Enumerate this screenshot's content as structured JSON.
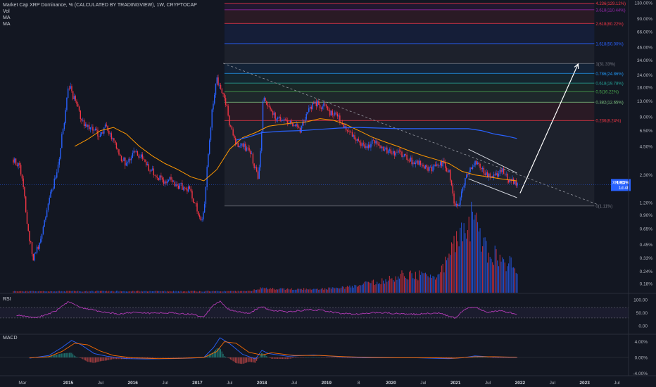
{
  "legend": {
    "title": "Market Cap XRP Dominance, % (CALCULATED BY TRADINGVIEW), 1W, CRYPTOCAP",
    "vol": "Vol",
    "ma1": "MA",
    "ma2": "MA"
  },
  "panes": {
    "rsi": "RSI",
    "macd": "MACD"
  },
  "price_badge": {
    "symbol": "XRP.D",
    "value": "1.83%",
    "countdown": "1d 4h"
  },
  "colors": {
    "background": "#131722",
    "up": "#2962ff",
    "down": "#f23645",
    "ma_fast": "#ff9800",
    "ma_slow": "#2962ff",
    "rsi": "#b23bb5",
    "fib_top": "#f23645",
    "fib_blue": "#2962ff"
  },
  "chart_data": [
    {
      "type": "candlestick",
      "title": "Market Cap XRP Dominance, % (CALCULATED BY TRADINGVIEW), 1W, CRYPTOCAP",
      "scale": "log",
      "y_ticks": [
        "130.00%",
        "90.00%",
        "66.00%",
        "46.00%",
        "34.00%",
        "24.00%",
        "18.00%",
        "13.00%",
        "9.00%",
        "6.50%",
        "4.50%",
        "2.30%",
        "1.20%",
        "0.90%",
        "0.65%",
        "0.45%",
        "0.33%",
        "0.24%",
        "0.18%"
      ],
      "y_tick_values": [
        130,
        90,
        66,
        46,
        34,
        24,
        18,
        13,
        9,
        6.5,
        4.5,
        2.3,
        1.2,
        0.9,
        0.65,
        0.45,
        0.33,
        0.24,
        0.18
      ],
      "x_ticks": [
        "Mar",
        "2015",
        "Jul",
        "2016",
        "Jul",
        "2017",
        "Jul",
        "2018",
        "Jul",
        "2019",
        "8",
        "2020",
        "Jul",
        "2021",
        "Jul",
        "2022",
        "Jul",
        "2023",
        "Jul"
      ],
      "x_tick_dates": [
        2014.17,
        2015.0,
        2015.5,
        2016.0,
        2016.5,
        2017.0,
        2017.5,
        2018.0,
        2018.5,
        2019.0,
        2019.5,
        2020.0,
        2020.5,
        2021.0,
        2021.5,
        2022.0,
        2022.5,
        2023.0,
        2023.5
      ],
      "grid": false,
      "price_path": [
        [
          2014.15,
          3.3
        ],
        [
          2014.25,
          2.8
        ],
        [
          2014.35,
          0.75
        ],
        [
          2014.45,
          0.3
        ],
        [
          2014.55,
          0.45
        ],
        [
          2014.65,
          0.85
        ],
        [
          2014.75,
          1.6
        ],
        [
          2014.85,
          3.0
        ],
        [
          2014.95,
          8.0
        ],
        [
          2015.0,
          20.0
        ],
        [
          2015.08,
          14.0
        ],
        [
          2015.18,
          9.5
        ],
        [
          2015.28,
          7.0
        ],
        [
          2015.38,
          6.5
        ],
        [
          2015.5,
          6.0
        ],
        [
          2015.6,
          7.2
        ],
        [
          2015.7,
          5.0
        ],
        [
          2015.8,
          3.5
        ],
        [
          2015.9,
          3.0
        ],
        [
          2016.0,
          3.8
        ],
        [
          2016.1,
          3.6
        ],
        [
          2016.2,
          3.0
        ],
        [
          2016.3,
          2.5
        ],
        [
          2016.4,
          2.2
        ],
        [
          2016.5,
          2.0
        ],
        [
          2016.6,
          2.1
        ],
        [
          2016.7,
          1.7
        ],
        [
          2016.8,
          1.8
        ],
        [
          2016.9,
          1.5
        ],
        [
          2017.0,
          0.98
        ],
        [
          2017.06,
          0.78
        ],
        [
          2017.12,
          1.2
        ],
        [
          2017.2,
          5.5
        ],
        [
          2017.3,
          22.0
        ],
        [
          2017.36,
          18.0
        ],
        [
          2017.42,
          14.0
        ],
        [
          2017.5,
          7.0
        ],
        [
          2017.6,
          5.0
        ],
        [
          2017.7,
          4.5
        ],
        [
          2017.8,
          4.2
        ],
        [
          2017.9,
          2.6
        ],
        [
          2017.95,
          2.0
        ],
        [
          2018.0,
          6.5
        ],
        [
          2018.02,
          15.0
        ],
        [
          2018.1,
          11.0
        ],
        [
          2018.2,
          9.0
        ],
        [
          2018.3,
          8.0
        ],
        [
          2018.4,
          7.8
        ],
        [
          2018.5,
          7.2
        ],
        [
          2018.6,
          6.5
        ],
        [
          2018.7,
          9.5
        ],
        [
          2018.75,
          11.0
        ],
        [
          2018.85,
          12.5
        ],
        [
          2018.95,
          11.5
        ],
        [
          2019.1,
          9.5
        ],
        [
          2019.2,
          8.5
        ],
        [
          2019.3,
          6.8
        ],
        [
          2019.4,
          5.5
        ],
        [
          2019.5,
          4.8
        ],
        [
          2019.6,
          4.3
        ],
        [
          2019.7,
          5.0
        ],
        [
          2019.8,
          4.6
        ],
        [
          2019.9,
          4.2
        ],
        [
          2020.0,
          4.0
        ],
        [
          2020.1,
          3.9
        ],
        [
          2020.2,
          3.8
        ],
        [
          2020.3,
          3.3
        ],
        [
          2020.4,
          3.0
        ],
        [
          2020.5,
          2.9
        ],
        [
          2020.6,
          2.7
        ],
        [
          2020.7,
          2.8
        ],
        [
          2020.8,
          3.1
        ],
        [
          2020.9,
          2.5
        ],
        [
          2020.97,
          1.3
        ],
        [
          2021.0,
          1.2
        ],
        [
          2021.05,
          1.2
        ],
        [
          2021.12,
          1.7
        ],
        [
          2021.2,
          2.4
        ],
        [
          2021.3,
          3.3
        ],
        [
          2021.4,
          2.6
        ],
        [
          2021.5,
          2.3
        ],
        [
          2021.6,
          2.2
        ],
        [
          2021.7,
          2.6
        ],
        [
          2021.8,
          2.1
        ],
        [
          2021.9,
          1.9
        ],
        [
          2021.95,
          1.83
        ]
      ],
      "ma_fast_path": [
        [
          2015.1,
          4.5
        ],
        [
          2015.3,
          5.3
        ],
        [
          2015.5,
          6.5
        ],
        [
          2015.7,
          7.0
        ],
        [
          2015.9,
          6.0
        ],
        [
          2016.1,
          4.5
        ],
        [
          2016.3,
          3.6
        ],
        [
          2016.5,
          3.0
        ],
        [
          2016.7,
          2.6
        ],
        [
          2016.9,
          2.2
        ],
        [
          2017.1,
          2.0
        ],
        [
          2017.3,
          2.6
        ],
        [
          2017.5,
          4.2
        ],
        [
          2017.7,
          5.5
        ],
        [
          2017.9,
          6.2
        ],
        [
          2018.1,
          7.2
        ],
        [
          2018.3,
          7.5
        ],
        [
          2018.5,
          7.8
        ],
        [
          2018.7,
          8.0
        ],
        [
          2018.9,
          8.6
        ],
        [
          2019.1,
          8.3
        ],
        [
          2019.3,
          7.5
        ],
        [
          2019.5,
          6.5
        ],
        [
          2019.7,
          5.6
        ],
        [
          2019.9,
          5.0
        ],
        [
          2020.1,
          4.5
        ],
        [
          2020.3,
          4.0
        ],
        [
          2020.5,
          3.6
        ],
        [
          2020.7,
          3.3
        ],
        [
          2020.9,
          3.0
        ],
        [
          2021.1,
          2.5
        ],
        [
          2021.3,
          2.3
        ],
        [
          2021.5,
          2.2
        ],
        [
          2021.7,
          2.1
        ],
        [
          2021.95,
          2.0
        ]
      ],
      "ma_slow_path": [
        [
          2017.6,
          5.2
        ],
        [
          2017.8,
          5.6
        ],
        [
          2018.0,
          6.2
        ],
        [
          2018.3,
          6.4
        ],
        [
          2018.6,
          6.5
        ],
        [
          2018.9,
          6.7
        ],
        [
          2019.2,
          6.9
        ],
        [
          2019.5,
          7.0
        ],
        [
          2019.8,
          6.9
        ],
        [
          2020.1,
          6.8
        ],
        [
          2020.4,
          6.8
        ],
        [
          2020.7,
          6.8
        ],
        [
          2021.0,
          6.8
        ],
        [
          2021.2,
          6.8
        ],
        [
          2021.4,
          6.5
        ],
        [
          2021.6,
          6.0
        ],
        [
          2021.8,
          5.7
        ],
        [
          2021.95,
          5.4
        ]
      ],
      "volume": {
        "y_ticks": [],
        "path": [
          [
            2017.8,
            0.02
          ],
          [
            2018.0,
            0.06
          ],
          [
            2018.3,
            0.05
          ],
          [
            2018.6,
            0.05
          ],
          [
            2018.9,
            0.05
          ],
          [
            2019.3,
            0.07
          ],
          [
            2019.6,
            0.12
          ],
          [
            2019.9,
            0.16
          ],
          [
            2020.1,
            0.22
          ],
          [
            2020.3,
            0.26
          ],
          [
            2020.5,
            0.22
          ],
          [
            2020.7,
            0.2
          ],
          [
            2020.9,
            0.45
          ],
          [
            2021.0,
            0.65
          ],
          [
            2021.1,
            0.8
          ],
          [
            2021.2,
            0.95
          ],
          [
            2021.3,
            1.0
          ],
          [
            2021.4,
            0.75
          ],
          [
            2021.5,
            0.55
          ],
          [
            2021.6,
            0.5
          ],
          [
            2021.7,
            0.45
          ],
          [
            2021.8,
            0.4
          ],
          [
            2021.95,
            0.35
          ]
        ]
      },
      "fib_levels": [
        {
          "label": "4.236(129.12%)",
          "value": 129.12,
          "color": "#f23645"
        },
        {
          "label": "3.618(110.44%)",
          "value": 110.44,
          "color": "#9c27b0"
        },
        {
          "label": "2.618(80.22%)",
          "value": 80.22,
          "color": "#f23645"
        },
        {
          "label": "1.618(50.00%)",
          "value": 50.0,
          "color": "#2962ff"
        },
        {
          "label": "1(31.33%)",
          "value": 31.33,
          "color": "#787b86"
        },
        {
          "label": "0.786(24.86%)",
          "value": 24.86,
          "color": "#2196f3"
        },
        {
          "label": "0.618(19.78%)",
          "value": 19.78,
          "color": "#26a69a"
        },
        {
          "label": "0.5(16.22%)",
          "value": 16.22,
          "color": "#4caf50"
        },
        {
          "label": "0.382(12.65%)",
          "value": 12.65,
          "color": "#81c784"
        },
        {
          "label": "0.236(8.24%)",
          "value": 8.24,
          "color": "#f23645"
        },
        {
          "label": "0(1.11%)",
          "value": 1.11,
          "color": "#787b86"
        }
      ],
      "fib_range": [
        2017.42,
        2023.15
      ],
      "annotations": [
        {
          "type": "dashed-trendline",
          "from": [
            2017.4,
            31.5
          ],
          "to": [
            2023.2,
            1.15
          ]
        },
        {
          "type": "channel-upper",
          "from": [
            2021.2,
            4.2
          ],
          "to": [
            2021.95,
            2.4
          ]
        },
        {
          "type": "channel-lower",
          "from": [
            2021.2,
            2.1
          ],
          "to": [
            2021.95,
            1.35
          ]
        },
        {
          "type": "arrow",
          "from": [
            2022.0,
            1.5
          ],
          "to": [
            2022.9,
            31.0
          ]
        }
      ]
    },
    {
      "type": "line",
      "title": "RSI",
      "y_ticks": [
        "100.00",
        "50.00",
        "0.00"
      ],
      "y_tick_values": [
        100,
        50,
        0
      ],
      "path": [
        [
          2014.2,
          40
        ],
        [
          2014.5,
          30
        ],
        [
          2014.8,
          55
        ],
        [
          2015.0,
          92
        ],
        [
          2015.2,
          70
        ],
        [
          2015.5,
          55
        ],
        [
          2015.8,
          45
        ],
        [
          2016.0,
          52
        ],
        [
          2016.3,
          48
        ],
        [
          2016.6,
          50
        ],
        [
          2016.9,
          44
        ],
        [
          2017.1,
          35
        ],
        [
          2017.25,
          80
        ],
        [
          2017.35,
          95
        ],
        [
          2017.5,
          60
        ],
        [
          2017.8,
          48
        ],
        [
          2018.0,
          75
        ],
        [
          2018.1,
          62
        ],
        [
          2018.4,
          52
        ],
        [
          2018.7,
          62
        ],
        [
          2018.9,
          60
        ],
        [
          2019.2,
          48
        ],
        [
          2019.5,
          44
        ],
        [
          2019.8,
          52
        ],
        [
          2020.1,
          46
        ],
        [
          2020.4,
          44
        ],
        [
          2020.7,
          50
        ],
        [
          2020.9,
          38
        ],
        [
          2021.0,
          30
        ],
        [
          2021.15,
          65
        ],
        [
          2021.3,
          72
        ],
        [
          2021.5,
          52
        ],
        [
          2021.7,
          58
        ],
        [
          2021.95,
          44
        ]
      ]
    },
    {
      "type": "bar",
      "title": "MACD",
      "y_ticks": [
        "4.00%",
        "0.00%",
        "-4.00%"
      ],
      "y_tick_values": [
        4,
        0,
        -4
      ],
      "macd_path": [
        [
          2014.4,
          -0.2
        ],
        [
          2014.7,
          0.5
        ],
        [
          2014.9,
          2.5
        ],
        [
          2015.05,
          4.3
        ],
        [
          2015.2,
          3.2
        ],
        [
          2015.4,
          1.0
        ],
        [
          2015.6,
          0.3
        ],
        [
          2015.9,
          -0.3
        ],
        [
          2016.2,
          -0.4
        ],
        [
          2016.6,
          -0.3
        ],
        [
          2016.9,
          -0.2
        ],
        [
          2017.1,
          0.0
        ],
        [
          2017.25,
          2.5
        ],
        [
          2017.35,
          5.0
        ],
        [
          2017.5,
          3.5
        ],
        [
          2017.7,
          0.8
        ],
        [
          2017.9,
          -0.4
        ],
        [
          2018.0,
          1.8
        ],
        [
          2018.1,
          1.0
        ],
        [
          2018.4,
          0.3
        ],
        [
          2018.8,
          0.6
        ],
        [
          2019.2,
          0.2
        ],
        [
          2019.6,
          -0.1
        ],
        [
          2020.0,
          -0.1
        ],
        [
          2020.4,
          -0.1
        ],
        [
          2020.9,
          -0.3
        ],
        [
          2021.1,
          -0.1
        ],
        [
          2021.3,
          0.4
        ],
        [
          2021.6,
          0.1
        ],
        [
          2021.95,
          0.0
        ]
      ],
      "signal_path": [
        [
          2014.4,
          -0.1
        ],
        [
          2014.7,
          0.2
        ],
        [
          2014.9,
          1.5
        ],
        [
          2015.1,
          3.6
        ],
        [
          2015.3,
          3.2
        ],
        [
          2015.5,
          1.6
        ],
        [
          2015.7,
          0.5
        ],
        [
          2016.0,
          -0.1
        ],
        [
          2016.4,
          -0.3
        ],
        [
          2016.8,
          -0.2
        ],
        [
          2017.1,
          0.0
        ],
        [
          2017.3,
          1.5
        ],
        [
          2017.42,
          4.0
        ],
        [
          2017.6,
          3.6
        ],
        [
          2017.8,
          1.3
        ],
        [
          2018.0,
          0.6
        ],
        [
          2018.15,
          1.2
        ],
        [
          2018.5,
          0.5
        ],
        [
          2018.9,
          0.5
        ],
        [
          2019.3,
          0.2
        ],
        [
          2019.7,
          0.0
        ],
        [
          2020.2,
          -0.1
        ],
        [
          2020.7,
          -0.1
        ],
        [
          2021.0,
          -0.2
        ],
        [
          2021.3,
          0.2
        ],
        [
          2021.6,
          0.2
        ],
        [
          2021.95,
          0.05
        ]
      ]
    }
  ]
}
